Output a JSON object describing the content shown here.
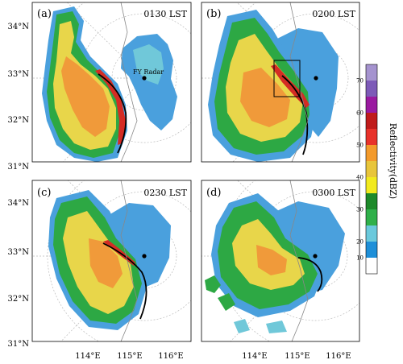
{
  "panels": [
    {
      "id": "a",
      "label": "(a)",
      "time": "0130 LST",
      "radar_label": "FY Radar"
    },
    {
      "id": "b",
      "label": "(b)",
      "time": "0200 LST"
    },
    {
      "id": "c",
      "label": "(c)",
      "time": "0230 LST"
    },
    {
      "id": "d",
      "label": "(d)",
      "time": "0300 LST"
    }
  ],
  "lat_labels": [
    "34°N",
    "33°N",
    "32°N",
    "31°N"
  ],
  "lon_labels": [
    "114°E",
    "115°E",
    "116°E"
  ],
  "colorbar": {
    "title": "Reflectivity(dBZ)",
    "ticks": [
      10,
      20,
      25,
      30,
      35,
      40,
      45,
      50,
      55,
      60,
      65,
      70
    ],
    "tick_labels": [
      "10",
      "20",
      "30",
      "40",
      "50",
      "60",
      "70"
    ],
    "colors": [
      "#ffffff",
      "#1e8fd8",
      "#6ac9dc",
      "#2fb04a",
      "#1d8a2a",
      "#f2ea1e",
      "#e8c53b",
      "#f39a2b",
      "#e8322a",
      "#c01b1b",
      "#9a1aa0",
      "#7d5ab8",
      "#a593cf"
    ]
  },
  "colors": {
    "echo_light": "#4aa0dd",
    "echo_cyan": "#70c8d9",
    "echo_green": "#2da844",
    "echo_yellow": "#e8d64a",
    "echo_orange": "#f09a3a",
    "echo_red": "#d42c24",
    "gust_front": "#000000",
    "border": "#888888"
  }
}
